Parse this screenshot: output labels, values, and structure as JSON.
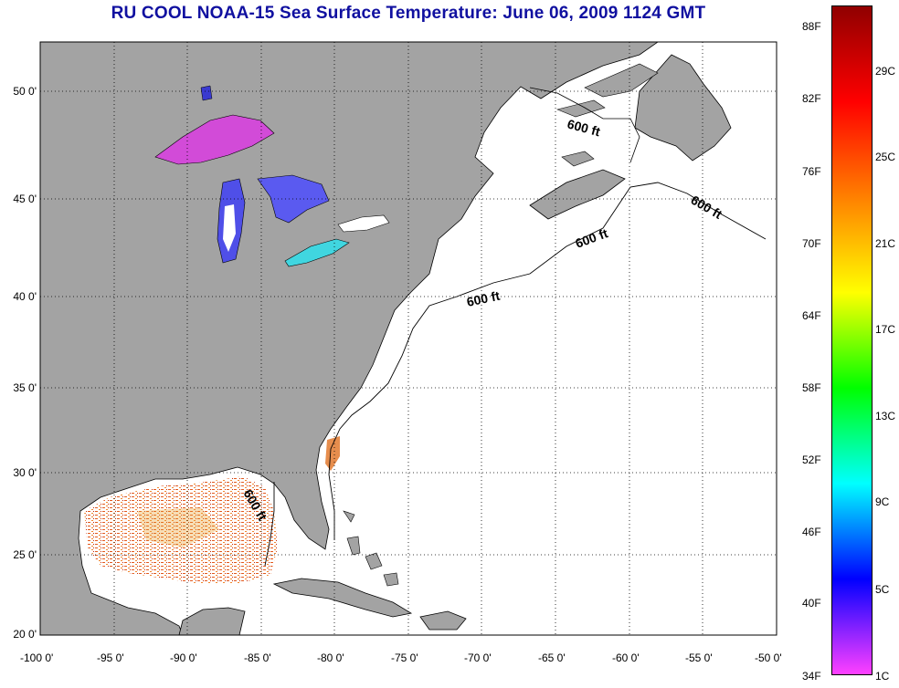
{
  "title": "RU COOL  NOAA-15  Sea Surface Temperature:  June 06, 2009 1124 GMT",
  "latitude_labels": [
    "50 0'",
    "45 0'",
    "40 0'",
    "35 0'",
    "30 0'",
    "25 0'",
    "20 0'"
  ],
  "longitude_labels": [
    "-100 0'",
    "-95 0'",
    "-90 0'",
    "-85 0'",
    "-80 0'",
    "-75 0'",
    "-70 0'",
    "-65 0'",
    "-60 0'",
    "-55 0'",
    "-50 0'"
  ],
  "contour_label": "600 ft",
  "colorbar": {
    "fahrenheit_labels": [
      "88F",
      "82F",
      "76F",
      "70F",
      "64F",
      "58F",
      "52F",
      "46F",
      "40F",
      "34F"
    ],
    "celsius_labels": [
      "29C",
      "25C",
      "21C",
      "17C",
      "13C",
      "9C",
      "5C",
      "1C"
    ],
    "gradient_colors": [
      "#900000",
      "#ff0000",
      "#ff8000",
      "#ffff00",
      "#00ff00",
      "#00ffff",
      "#0000ff",
      "#ff40ff"
    ]
  },
  "colors": {
    "land": "#a3a3a3",
    "ocean": "#ffffff",
    "title": "#1010a0"
  }
}
